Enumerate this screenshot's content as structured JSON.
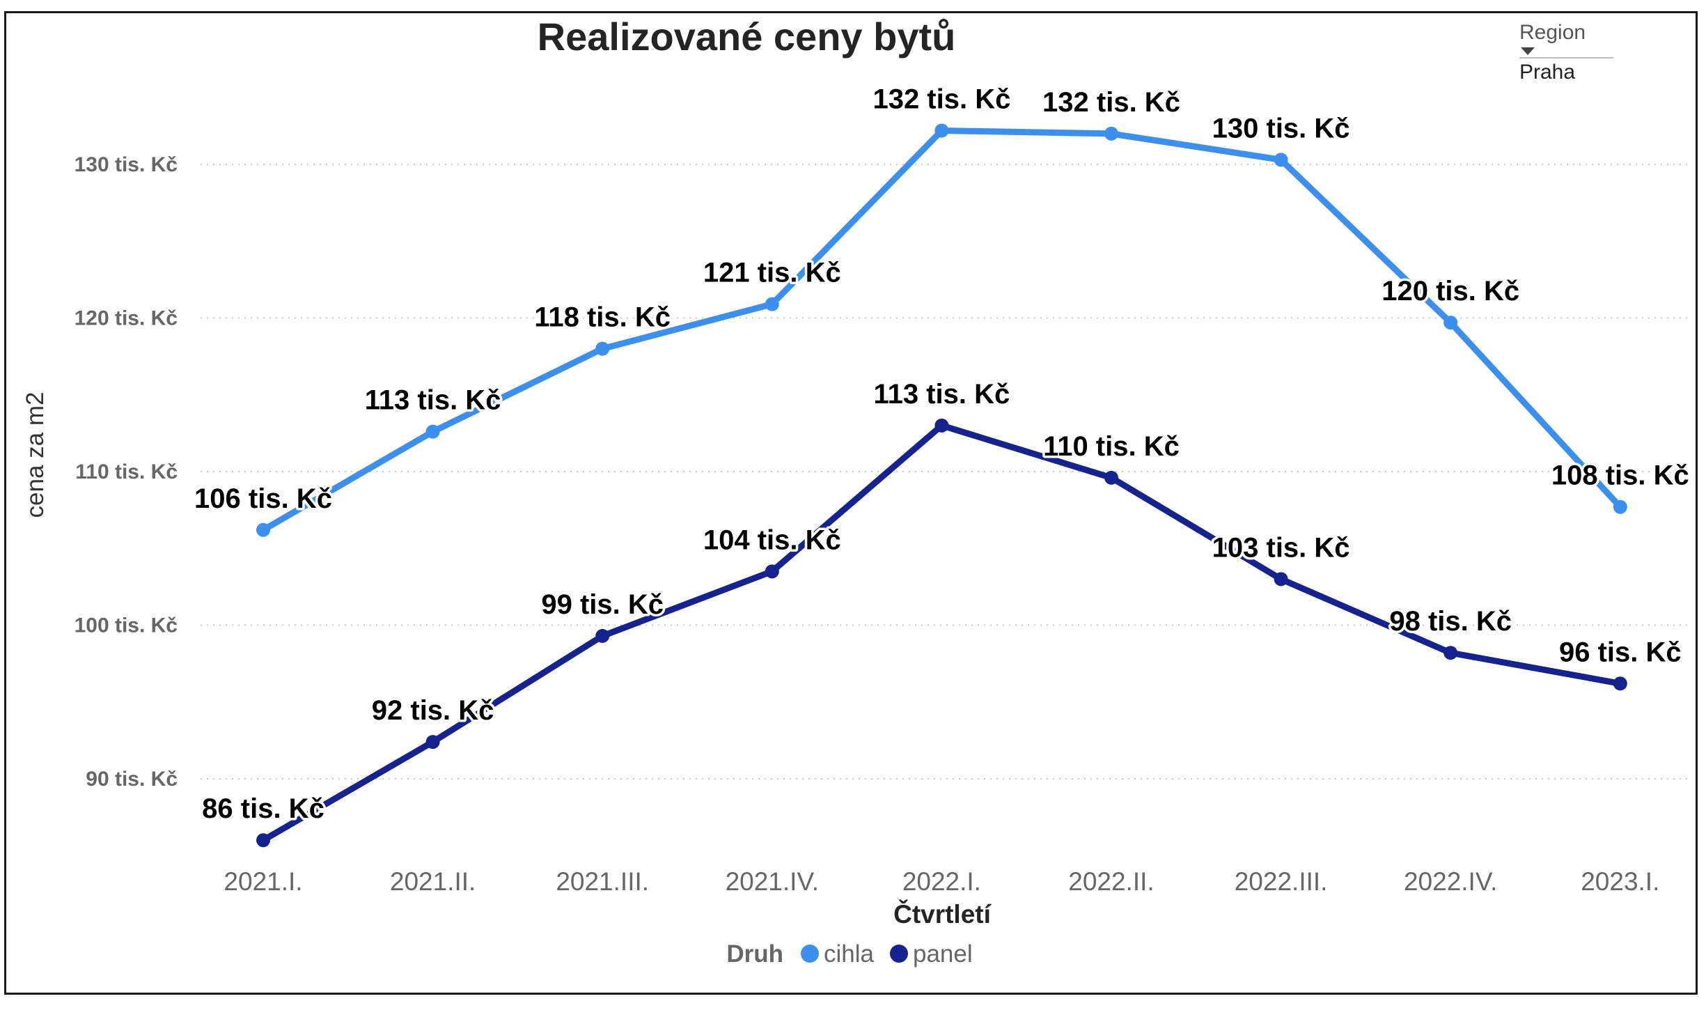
{
  "chart_data": {
    "type": "line",
    "title": "Realizované ceny bytů",
    "xlabel": "Čtvrtletí",
    "ylabel": "cena za m2",
    "categories": [
      "2021.I.",
      "2021.II.",
      "2021.III.",
      "2021.IV.",
      "2022.I.",
      "2022.II.",
      "2022.III.",
      "2022.IV.",
      "2023.I."
    ],
    "yticks": [
      90,
      100,
      110,
      120,
      130
    ],
    "ytick_labels": [
      "90 tis. Kč",
      "100 tis. Kč",
      "110 tis. Kč",
      "120 tis. Kč",
      "130 tis. Kč"
    ],
    "ylim": [
      84.9,
      135.4
    ],
    "grid": "horizontal dotted",
    "legend_title": "Druh",
    "legend_position": "bottom-center",
    "series": [
      {
        "name": "cihla",
        "color": "#3d8fee",
        "values": [
          106.2,
          112.6,
          118.0,
          120.9,
          132.2,
          132.0,
          130.3,
          119.7,
          107.7
        ],
        "labels": [
          "106 tis. Kč",
          "113 tis. Kč",
          "118 tis. Kč",
          "121 tis. Kč",
          "132 tis. Kč",
          "132 tis. Kč",
          "130 tis. Kč",
          "120 tis. Kč",
          "108 tis. Kč"
        ]
      },
      {
        "name": "panel",
        "color": "#16238e",
        "values": [
          86.0,
          92.4,
          99.3,
          103.5,
          113.0,
          109.6,
          103.0,
          98.2,
          96.2
        ],
        "labels": [
          "86 tis. Kč",
          "92 tis. Kč",
          "99 tis. Kč",
          "104 tis. Kč",
          "113 tis. Kč",
          "110 tis. Kč",
          "103 tis. Kč",
          "98 tis. Kč",
          "96 tis. Kč"
        ]
      }
    ]
  },
  "slicer": {
    "label": "Region",
    "value": "Praha"
  }
}
